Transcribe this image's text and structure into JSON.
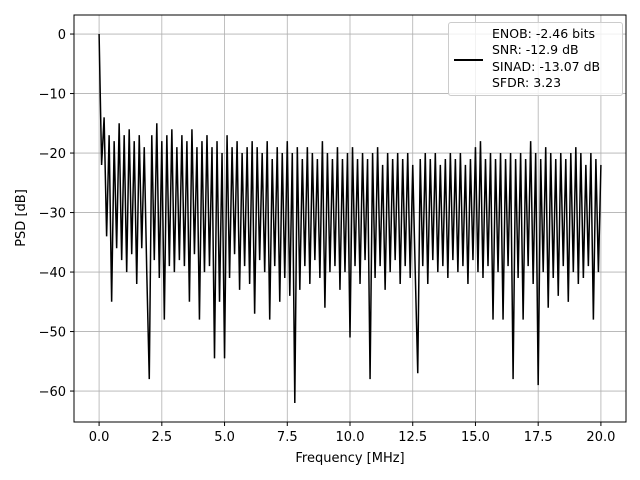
{
  "chart_data": {
    "type": "line",
    "xlabel": "Frequency [MHz]",
    "ylabel": "PSD [dB]",
    "xlim": [
      -1,
      21
    ],
    "ylim": [
      -65.2,
      3.2
    ],
    "xticks": [
      {
        "value": 0,
        "label": "0.0"
      },
      2.5,
      {
        "value": 5,
        "label": "5.0"
      },
      7.5,
      {
        "value": 10,
        "label": "10.0"
      },
      12.5,
      {
        "value": 15,
        "label": "15.0"
      },
      17.5,
      {
        "value": 20,
        "label": "20.0"
      }
    ],
    "yticks": [
      {
        "value": -60,
        "label": "−60"
      },
      {
        "value": -50,
        "label": "−50"
      },
      {
        "value": -40,
        "label": "−40"
      },
      {
        "value": -30,
        "label": "−30"
      },
      {
        "value": -20,
        "label": "−20"
      },
      {
        "value": -10,
        "label": "−10"
      },
      0
    ],
    "grid": true,
    "legend": "upper right",
    "x": [
      0,
      0.1,
      0.2,
      0.3,
      0.4,
      0.5,
      0.6,
      0.7,
      0.8,
      0.9,
      1,
      1.1,
      1.2,
      1.3,
      1.4,
      1.5,
      1.6,
      1.7,
      1.8,
      1.9,
      2,
      2.1,
      2.2,
      2.3,
      2.4,
      2.5,
      2.6,
      2.7,
      2.8,
      2.9,
      3,
      3.1,
      3.2,
      3.3,
      3.4,
      3.5,
      3.6,
      3.7,
      3.8,
      3.9,
      4,
      4.1,
      4.2,
      4.3,
      4.4,
      4.5,
      4.6,
      4.7,
      4.8,
      4.9,
      5,
      5.1,
      5.2,
      5.3,
      5.4,
      5.5,
      5.6,
      5.7,
      5.8,
      5.9,
      6,
      6.1,
      6.2,
      6.3,
      6.4,
      6.5,
      6.6,
      6.7,
      6.8,
      6.9,
      7,
      7.1,
      7.2,
      7.3,
      7.4,
      7.5,
      7.6,
      7.7,
      7.8,
      7.9,
      8,
      8.1,
      8.2,
      8.3,
      8.4,
      8.5,
      8.6,
      8.7,
      8.8,
      8.9,
      9,
      9.1,
      9.2,
      9.3,
      9.4,
      9.5,
      9.6,
      9.7,
      9.8,
      9.9,
      10,
      10.1,
      10.2,
      10.3,
      10.4,
      10.5,
      10.6,
      10.7,
      10.8,
      10.9,
      11,
      11.1,
      11.2,
      11.3,
      11.4,
      11.5,
      11.6,
      11.7,
      11.8,
      11.9,
      12,
      12.1,
      12.2,
      12.3,
      12.4,
      12.5,
      12.6,
      12.7,
      12.8,
      12.9,
      13,
      13.1,
      13.2,
      13.3,
      13.4,
      13.5,
      13.6,
      13.7,
      13.8,
      13.9,
      14,
      14.1,
      14.2,
      14.3,
      14.4,
      14.5,
      14.6,
      14.7,
      14.8,
      14.9,
      15,
      15.1,
      15.2,
      15.3,
      15.4,
      15.5,
      15.6,
      15.7,
      15.8,
      15.9,
      16,
      16.1,
      16.2,
      16.3,
      16.4,
      16.5,
      16.6,
      16.7,
      16.8,
      16.9,
      17,
      17.1,
      17.2,
      17.3,
      17.4,
      17.5,
      17.6,
      17.7,
      17.8,
      17.9,
      18,
      18.1,
      18.2,
      18.3,
      18.4,
      18.5,
      18.6,
      18.7,
      18.8,
      18.9,
      19,
      19.1,
      19.2,
      19.3,
      19.4,
      19.5,
      19.6,
      19.7,
      19.8,
      19.9,
      20
    ],
    "series": [
      {
        "name": "ENOB: -2.46 bits\nSNR: -12.9 dB\nSINAD: -13.07 dB\nSFDR: 3.23",
        "color": "#000000",
        "values": [
          0,
          -22,
          -14,
          -34,
          -17,
          -45,
          -18,
          -36,
          -15,
          -38,
          -17,
          -40,
          -16,
          -37,
          -18,
          -42,
          -17,
          -36,
          -19,
          -40,
          -58,
          -17,
          -38,
          -15,
          -41,
          -18,
          -48,
          -17,
          -39,
          -16,
          -40,
          -19,
          -38,
          -17,
          -39,
          -18,
          -45,
          -16,
          -37,
          -19,
          -48,
          -18,
          -40,
          -17,
          -39,
          -19,
          -54.5,
          -18,
          -45,
          -20,
          -54.5,
          -17,
          -41,
          -19,
          -37,
          -18,
          -43,
          -20,
          -39,
          -19,
          -42,
          -18,
          -47,
          -19,
          -38,
          -20,
          -40,
          -18,
          -48,
          -21,
          -39,
          -19,
          -45,
          -20,
          -41,
          -18,
          -44,
          -20,
          -62,
          -19,
          -43,
          -21,
          -39,
          -19,
          -42,
          -20,
          -38,
          -21,
          -41,
          -18,
          -46,
          -20,
          -40,
          -21,
          -39,
          -19,
          -43,
          -21,
          -40,
          -20,
          -51,
          -19,
          -39,
          -21,
          -42,
          -20,
          -38,
          -21,
          -58,
          -20,
          -41,
          -19,
          -39,
          -22,
          -43,
          -20,
          -40,
          -21,
          -38,
          -20,
          -42,
          -21,
          -39,
          -20,
          -41,
          -22,
          -40,
          -57,
          -21,
          -39,
          -20,
          -42,
          -21,
          -38,
          -20,
          -40,
          -22,
          -39,
          -21,
          -41,
          -20,
          -38,
          -21,
          -40,
          -20,
          -39,
          -22,
          -42,
          -21,
          -38,
          -19,
          -40,
          -18,
          -41,
          -21,
          -39,
          -20,
          -48,
          -21,
          -40,
          -20,
          -48,
          -21,
          -39,
          -20,
          -58,
          -21,
          -41,
          -20,
          -48,
          -21,
          -39,
          -18,
          -42,
          -20,
          -59,
          -21,
          -40,
          -19,
          -46,
          -20,
          -41,
          -21,
          -44,
          -20,
          -39,
          -21,
          -45,
          -20,
          -40,
          -19,
          -42,
          -20,
          -41,
          -22,
          -39,
          -20,
          -48,
          -21,
          -40,
          -22
        ]
      }
    ]
  }
}
